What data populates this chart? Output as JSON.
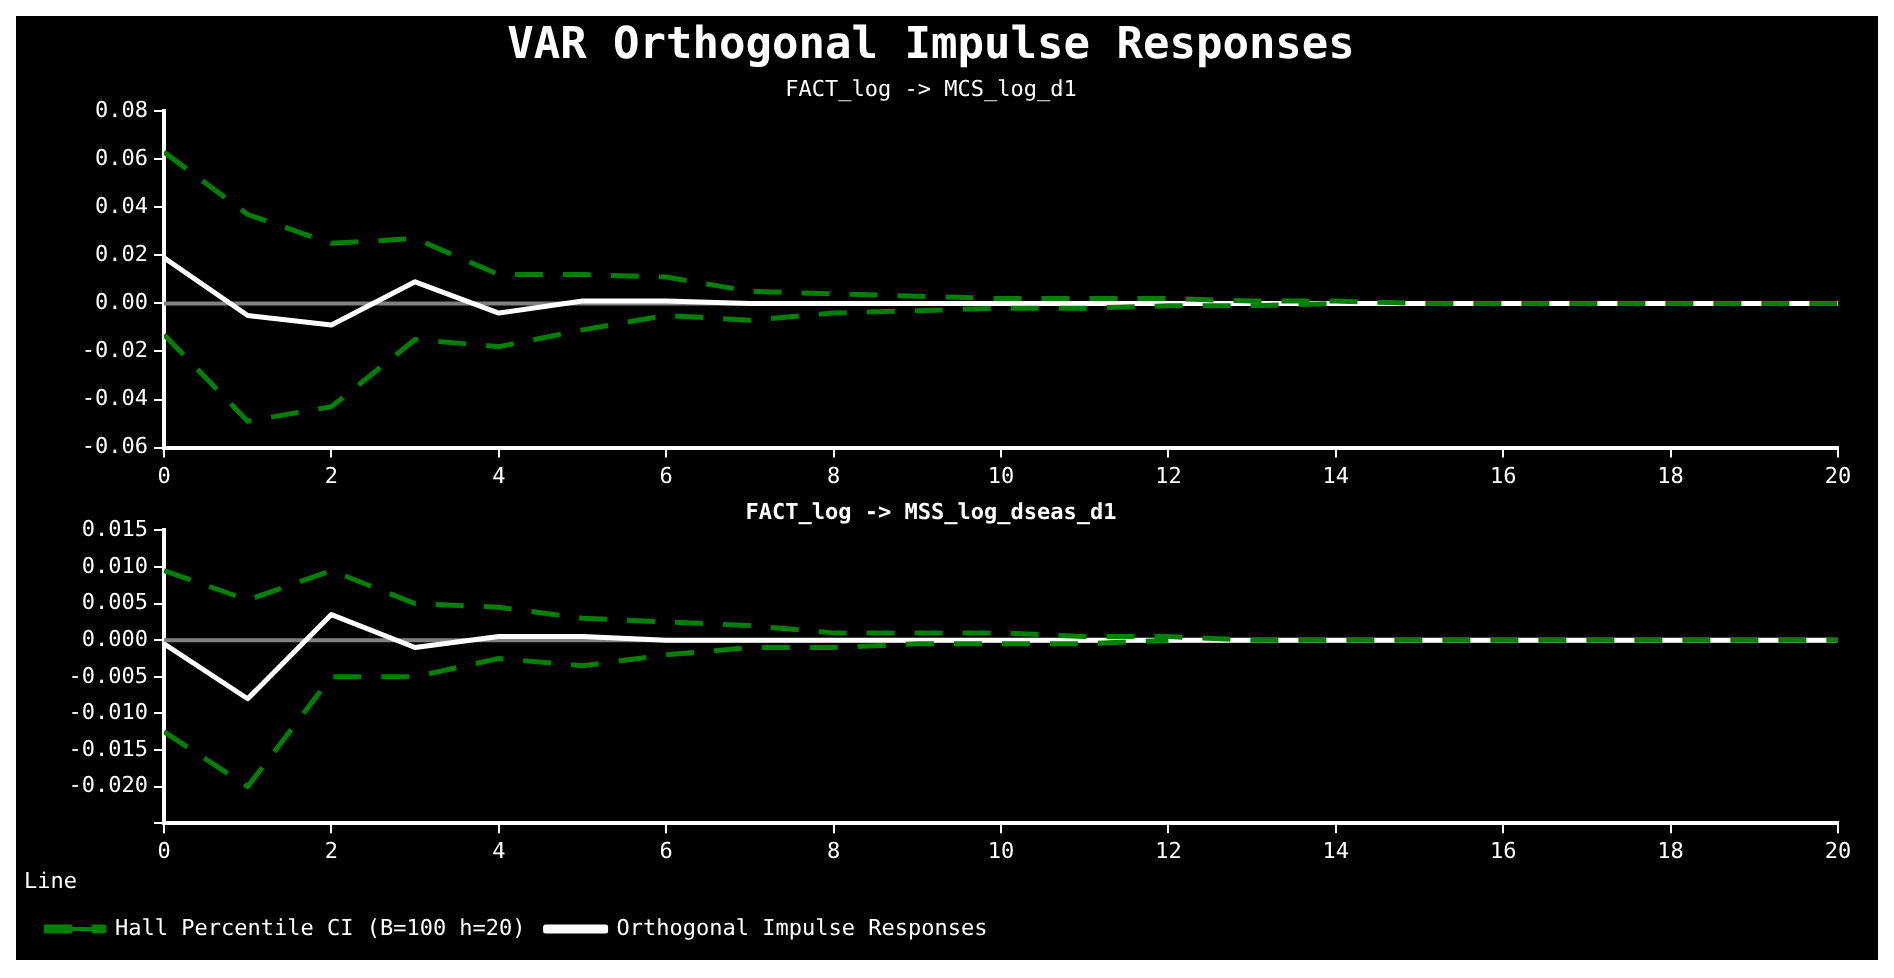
{
  "chart_data": [
    {
      "type": "line",
      "title": "VAR Orthogonal Impulse Responses",
      "subtitle": "FACT_log -> MCS_log_d1",
      "x": [
        0,
        1,
        2,
        3,
        4,
        5,
        6,
        7,
        8,
        9,
        10,
        11,
        12,
        13,
        14,
        15,
        16,
        17,
        18,
        19,
        20
      ],
      "xlim": [
        0,
        20
      ],
      "xticks": [
        0,
        2,
        4,
        6,
        8,
        10,
        12,
        14,
        16,
        18,
        20
      ],
      "ylim": [
        -0.06,
        0.08
      ],
      "yticks": [
        {
          "value": -0.06,
          "label": "-0.06"
        },
        {
          "value": -0.04,
          "label": "-0.04"
        },
        {
          "value": -0.02,
          "label": "-0.02"
        },
        {
          "value": 0,
          "label": "0.00"
        },
        {
          "value": 0.02,
          "label": "0.02"
        },
        {
          "value": 0.04,
          "label": "0.04"
        },
        {
          "value": 0.06,
          "label": "0.06"
        },
        {
          "value": 0.08,
          "label": "0.08"
        }
      ],
      "grid": false,
      "legend": false,
      "series": [
        {
          "color": "#ffffff",
          "line_style": "solid",
          "values": [
            0.019,
            -0.005,
            -0.009,
            0.009,
            -0.004,
            0.001,
            0.001,
            0,
            0,
            0,
            0,
            0,
            0,
            0,
            0,
            0,
            0,
            0,
            0,
            0,
            0
          ]
        },
        {
          "color": "#008000",
          "line_style": "dashed",
          "values": [
            0.063,
            0.037,
            0.025,
            0.027,
            0.012,
            0.012,
            0.011,
            0.005,
            0.004,
            0.003,
            0.002,
            0.002,
            0.002,
            0.001,
            0.001,
            0,
            0,
            0,
            0,
            0,
            0
          ]
        },
        {
          "color": "#008000",
          "line_style": "dashed",
          "values": [
            -0.013,
            -0.049,
            -0.043,
            -0.015,
            -0.018,
            -0.011,
            -0.005,
            -0.007,
            -0.004,
            -0.003,
            -0.002,
            -0.002,
            -0.001,
            -0.001,
            0,
            null,
            null,
            null,
            null,
            null,
            null
          ]
        }
      ],
      "ref_lines": [
        {
          "axis": "y",
          "value": 0,
          "color": "#808080"
        }
      ]
    },
    {
      "type": "line",
      "title": "FACT_log -> MSS_log_dseas_d1",
      "x": [
        0,
        1,
        2,
        3,
        4,
        5,
        6,
        7,
        8,
        9,
        10,
        11,
        12,
        13,
        14,
        15,
        16,
        17,
        18,
        19,
        20
      ],
      "xlim": [
        0,
        20
      ],
      "xticks": [
        0,
        2,
        4,
        6,
        8,
        10,
        12,
        14,
        16,
        18,
        20
      ],
      "ylim": [
        -0.025,
        0.015
      ],
      "yticks": [
        {
          "value": -0.025,
          "label": null
        },
        {
          "value": -0.02,
          "label": "-0.020"
        },
        {
          "value": -0.015,
          "label": "-0.015"
        },
        {
          "value": -0.01,
          "label": "-0.010"
        },
        {
          "value": -0.005,
          "label": "-0.005"
        },
        {
          "value": 0,
          "label": "0.000"
        },
        {
          "value": 0.005,
          "label": "0.005"
        },
        {
          "value": 0.01,
          "label": "0.010"
        },
        {
          "value": 0.015,
          "label": "0.015"
        }
      ],
      "grid": false,
      "legend": "bottom left",
      "legend_title": "Line",
      "series": [
        {
          "name": "Orthogonal Impulse Responses",
          "color": "#ffffff",
          "line_style": "solid",
          "values": [
            -0.0005,
            -0.008,
            0.0035,
            -0.001,
            0.0005,
            0.0005,
            0,
            0,
            0,
            0,
            0,
            0,
            0,
            0,
            0,
            0,
            0,
            0,
            0,
            0,
            0
          ]
        },
        {
          "name": "Hall Percentile CI (B=100 h=20)",
          "color": "#008000",
          "line_style": "dashed",
          "values": [
            0.0095,
            0.0055,
            0.0095,
            0.005,
            0.0045,
            0.003,
            0.0025,
            0.002,
            0.001,
            0.001,
            0.001,
            0.0005,
            0.0005,
            0,
            0,
            0,
            0,
            0,
            0,
            0,
            0
          ]
        },
        {
          "color": "#008000",
          "line_style": "dashed",
          "values": [
            -0.0125,
            -0.02,
            -0.005,
            -0.005,
            -0.0025,
            -0.0035,
            -0.002,
            -0.001,
            -0.001,
            -0.0005,
            -0.0005,
            -0.0005,
            0,
            null,
            null,
            null,
            null,
            null,
            null,
            null,
            null
          ]
        }
      ],
      "ref_lines": [
        {
          "axis": "y",
          "value": 0,
          "color": "#808080"
        }
      ]
    }
  ]
}
